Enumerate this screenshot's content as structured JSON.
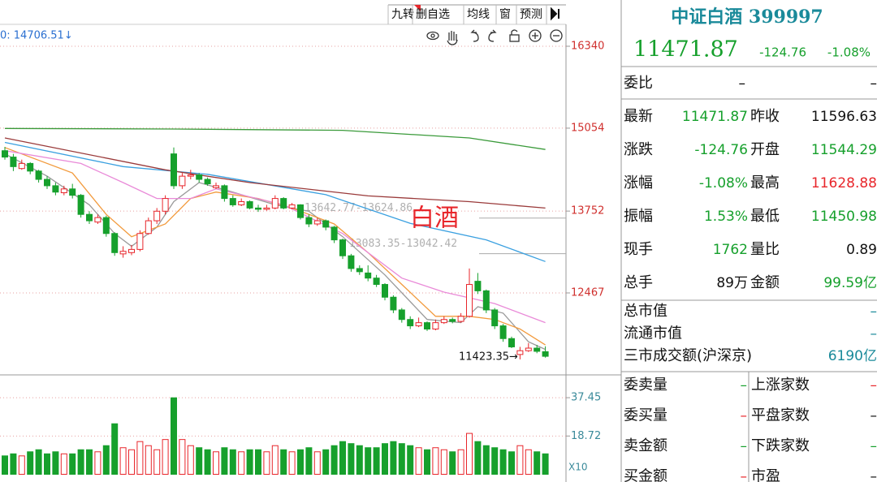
{
  "toolbar": {
    "buttons": [
      "九转",
      "删自选",
      "均线",
      "窗",
      "预测"
    ],
    "ma_label": "0: 14706.51↓"
  },
  "chart_data": {
    "type": "candlestick",
    "up_color": "#e8262b",
    "down_color": "#16a02c",
    "ylim": [
      11180,
      16684
    ],
    "yticks": [
      12467,
      13752,
      15054,
      16340
    ],
    "grid": true,
    "ohlc": [
      [
        14700,
        14760,
        14560,
        14600
      ],
      [
        14600,
        14650,
        14380,
        14450
      ],
      [
        14420,
        14560,
        14400,
        14500
      ],
      [
        14500,
        14520,
        14330,
        14380
      ],
      [
        14380,
        14400,
        14200,
        14250
      ],
      [
        14250,
        14300,
        14100,
        14150
      ],
      [
        14150,
        14200,
        14000,
        14050
      ],
      [
        14040,
        14150,
        14000,
        14100
      ],
      [
        14100,
        14180,
        13950,
        14000
      ],
      [
        14000,
        14020,
        13650,
        13700
      ],
      [
        13700,
        13750,
        13550,
        13600
      ],
      [
        13580,
        13700,
        13550,
        13650
      ],
      [
        13650,
        13680,
        13350,
        13400
      ],
      [
        13400,
        13420,
        13050,
        13100
      ],
      [
        13080,
        13200,
        13020,
        13120
      ],
      [
        13100,
        13220,
        13060,
        13150
      ],
      [
        13150,
        13450,
        13120,
        13400
      ],
      [
        13400,
        13650,
        13380,
        13600
      ],
      [
        13600,
        13800,
        13550,
        13750
      ],
      [
        13750,
        14000,
        13700,
        13950
      ],
      [
        14650,
        14750,
        14100,
        14150
      ],
      [
        14150,
        14350,
        14100,
        14300
      ],
      [
        14300,
        14400,
        14250,
        14320
      ],
      [
        14320,
        14350,
        14200,
        14250
      ],
      [
        14250,
        14280,
        14150,
        14180
      ],
      [
        14120,
        14200,
        14100,
        14150
      ],
      [
        14150,
        14170,
        13900,
        13950
      ],
      [
        13950,
        14000,
        13820,
        13850
      ],
      [
        13850,
        13950,
        13830,
        13900
      ],
      [
        13900,
        13920,
        13780,
        13800
      ],
      [
        13800,
        13850,
        13740,
        13780
      ],
      [
        13780,
        13850,
        13760,
        13800
      ],
      [
        13800,
        14000,
        13780,
        13950
      ],
      [
        13950,
        13970,
        13780,
        13800
      ],
      [
        13800,
        13880,
        13780,
        13850
      ],
      [
        13850,
        13860,
        13620,
        13650
      ],
      [
        13650,
        13700,
        13500,
        13550
      ],
      [
        13550,
        13650,
        13520,
        13600
      ],
      [
        13600,
        13620,
        13450,
        13500
      ],
      [
        13500,
        13520,
        13250,
        13300
      ],
      [
        13300,
        13320,
        13000,
        13050
      ],
      [
        13050,
        13080,
        12800,
        12850
      ],
      [
        12850,
        12900,
        12750,
        12800
      ],
      [
        12780,
        12900,
        12650,
        12700
      ],
      [
        12700,
        12750,
        12560,
        12600
      ],
      [
        12600,
        12620,
        12350,
        12400
      ],
      [
        12400,
        12430,
        12150,
        12200
      ],
      [
        12200,
        12230,
        12000,
        12050
      ],
      [
        12050,
        12100,
        11900,
        11950
      ],
      [
        11950,
        12080,
        11930,
        12000
      ],
      [
        12000,
        12020,
        11870,
        11900
      ],
      [
        11900,
        12050,
        11880,
        12000
      ],
      [
        12000,
        12100,
        11980,
        12050
      ],
      [
        12050,
        12080,
        11990,
        12020
      ],
      [
        12020,
        12150,
        12000,
        12100
      ],
      [
        12100,
        12850,
        12080,
        12600
      ],
      [
        12650,
        12780,
        12450,
        12500
      ],
      [
        12500,
        12520,
        12150,
        12200
      ],
      [
        12200,
        12230,
        11900,
        11950
      ],
      [
        11950,
        11980,
        11700,
        11750
      ],
      [
        11750,
        11780,
        11600,
        11620
      ],
      [
        11500,
        11620,
        11423.35,
        11560
      ],
      [
        11560,
        11680,
        11540,
        11600
      ],
      [
        11600,
        11650,
        11520,
        11550
      ],
      [
        11544.29,
        11628.88,
        11450.98,
        11471.87
      ]
    ],
    "volume": [
      9,
      10,
      9,
      11,
      12,
      10,
      11,
      10,
      10,
      12,
      12,
      11,
      14,
      24.7,
      13,
      12,
      16,
      14,
      12,
      17,
      37.4,
      17,
      14,
      13,
      12,
      11,
      13,
      12,
      11,
      12,
      12,
      11,
      14,
      12,
      11,
      12,
      13,
      11,
      12,
      14,
      16,
      15,
      14,
      13,
      13,
      15,
      16,
      15,
      14,
      13,
      12,
      13,
      12,
      11,
      12,
      20,
      16,
      14,
      13,
      12,
      11,
      14,
      12,
      11,
      10
    ],
    "vol_ylim": [
      0,
      48.6
    ],
    "vol_yticks": [
      18.72,
      37.45
    ],
    "vol_unit": "X10",
    "ma_lines": [
      {
        "color": "#9a9a9a",
        "x": [
          0,
          5,
          10,
          13,
          15,
          18,
          20,
          23,
          27,
          32,
          36,
          40,
          45,
          50,
          54,
          56,
          59,
          62,
          64
        ],
        "values": [
          14650,
          14300,
          13850,
          13400,
          13200,
          13500,
          13900,
          14200,
          14050,
          13850,
          13750,
          13350,
          12750,
          12050,
          12000,
          12250,
          12150,
          11700,
          11580
        ]
      },
      {
        "color": "#f29a3c",
        "x": [
          0,
          8,
          12,
          15,
          19,
          22,
          25,
          30,
          34,
          39,
          43,
          47,
          51,
          55,
          58,
          61,
          64
        ],
        "values": [
          14750,
          14350,
          13700,
          13350,
          13550,
          13950,
          14050,
          13950,
          13800,
          13550,
          13100,
          12600,
          12100,
          12100,
          12050,
          11900,
          11650
        ]
      },
      {
        "color": "#e98ad8",
        "x": [
          0,
          9,
          14,
          18,
          22,
          25,
          33,
          40,
          47,
          52,
          58,
          64
        ],
        "values": [
          14700,
          14500,
          14200,
          13950,
          13950,
          14100,
          13850,
          13400,
          12700,
          12480,
          12300,
          12000
        ]
      },
      {
        "color": "#3aa0e0",
        "x": [
          0,
          14,
          24,
          38,
          48,
          57,
          64
        ],
        "values": [
          14830,
          14450,
          14330,
          14010,
          13560,
          13300,
          12960
        ]
      },
      {
        "color": "#9a3a3a",
        "x": [
          0,
          19,
          29,
          43,
          55,
          64
        ],
        "values": [
          14900,
          14400,
          14200,
          13990,
          13900,
          13800
        ]
      },
      {
        "color": "#3a9a3a",
        "x": [
          0,
          20,
          40,
          55,
          64
        ],
        "values": [
          15050,
          15040,
          15020,
          14900,
          14720
        ]
      }
    ],
    "annotations": [
      {
        "text": "13642.77-13624.86",
        "value": 13642.77
      },
      {
        "text": "13083.35-13042.42",
        "value": 13083.35
      }
    ],
    "low_label": "11423.35→",
    "big_label": "白酒"
  },
  "quote": {
    "title": "中证白酒 399997",
    "price": "11471.87",
    "change": "-124.76",
    "pct": "-1.08%",
    "weibi": {
      "label": "委比",
      "values": [
        "–",
        "–"
      ]
    },
    "rows": [
      {
        "l1": "最新",
        "v1": "11471.87",
        "c1": "#16a02c",
        "l2": "昨收",
        "v2": "11596.63",
        "c2": "#111"
      },
      {
        "l1": "涨跌",
        "v1": "-124.76",
        "c1": "#16a02c",
        "l2": "开盘",
        "v2": "11544.29",
        "c2": "#16a02c"
      },
      {
        "l1": "涨幅",
        "v1": "-1.08%",
        "c1": "#16a02c",
        "l2": "最高",
        "v2": "11628.88",
        "c2": "#e8262b"
      },
      {
        "l1": "振幅",
        "v1": "1.53%",
        "c1": "#16a02c",
        "l2": "最低",
        "v2": "11450.98",
        "c2": "#16a02c"
      },
      {
        "l1": "现手",
        "v1": "1762",
        "c1": "#16a02c",
        "l2": "量比",
        "v2": "0.89",
        "c2": "#111"
      },
      {
        "l1": "总手",
        "v1": "89万",
        "c1": "#111",
        "l2": "金额",
        "v2": "99.59亿",
        "c2": "#16a02c"
      }
    ],
    "single": [
      {
        "label": "总市值",
        "value": "–",
        "color": "#1a8a9a"
      },
      {
        "label": "流通市值",
        "value": "–",
        "color": "#1a8a9a"
      },
      {
        "label": "三市成交额(沪深京)",
        "value": "6190亿",
        "color": "#1a8a9a"
      }
    ],
    "grid": [
      {
        "l1": "委卖量",
        "v1": "–",
        "c1": "#16a02c",
        "l2": "上涨家数",
        "v2": "–",
        "c2": "#e8262b"
      },
      {
        "l1": "委买量",
        "v1": "–",
        "c1": "#e8262b",
        "l2": "平盘家数",
        "v2": "–",
        "c2": "#111"
      },
      {
        "l1": "卖金额",
        "v1": "–",
        "c1": "#16a02c",
        "l2": "下跌家数",
        "v2": "–",
        "c2": "#16a02c"
      },
      {
        "l1": "买金额",
        "v1": "–",
        "c1": "#e8262b",
        "l2": "市盈",
        "v2": "–",
        "c2": "#111"
      }
    ]
  }
}
